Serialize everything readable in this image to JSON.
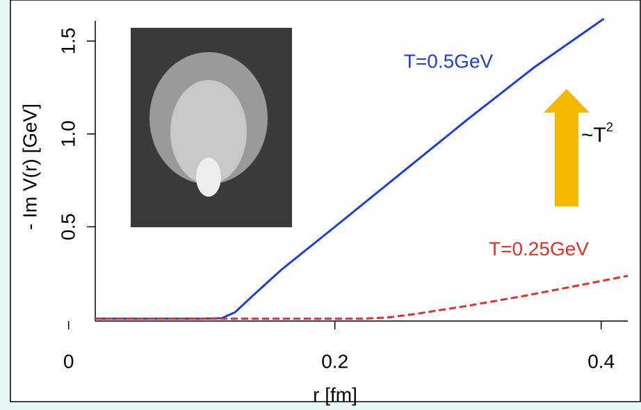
{
  "chart_data": {
    "type": "line",
    "x_label": "r [fm]",
    "y_label": "- Im V(r) [GeV]",
    "xlim": [
      0.02,
      0.42
    ],
    "ylim": [
      0,
      1.62
    ],
    "xticks": [
      0,
      0.2,
      0.4
    ],
    "yticks": [
      0.5,
      1.0,
      1.5
    ],
    "x": [
      0.02,
      0.1,
      0.115,
      0.125,
      0.14,
      0.16,
      0.2,
      0.22,
      0.24,
      0.25,
      0.26,
      0.3,
      0.34,
      0.35,
      0.38,
      0.402,
      0.42
    ],
    "series": [
      {
        "name": "T=0.5GeV",
        "color": "#1a3fe0",
        "dash": false,
        "values": [
          0.005,
          0.005,
          0.008,
          0.04,
          0.14,
          0.27,
          0.5,
          null,
          null,
          0.79,
          null,
          1.08,
          null,
          1.36,
          null,
          1.62,
          null
        ]
      },
      {
        "name": "T=0.25GeV",
        "color": "#e8302a",
        "dash": true,
        "values": [
          0.005,
          0.005,
          null,
          null,
          null,
          null,
          0.005,
          0.005,
          0.012,
          null,
          0.03,
          0.075,
          0.125,
          null,
          0.18,
          null,
          0.236
        ]
      }
    ],
    "annotation": {
      "text": "~T",
      "superscript": "2",
      "color": "#f5b800"
    }
  }
}
